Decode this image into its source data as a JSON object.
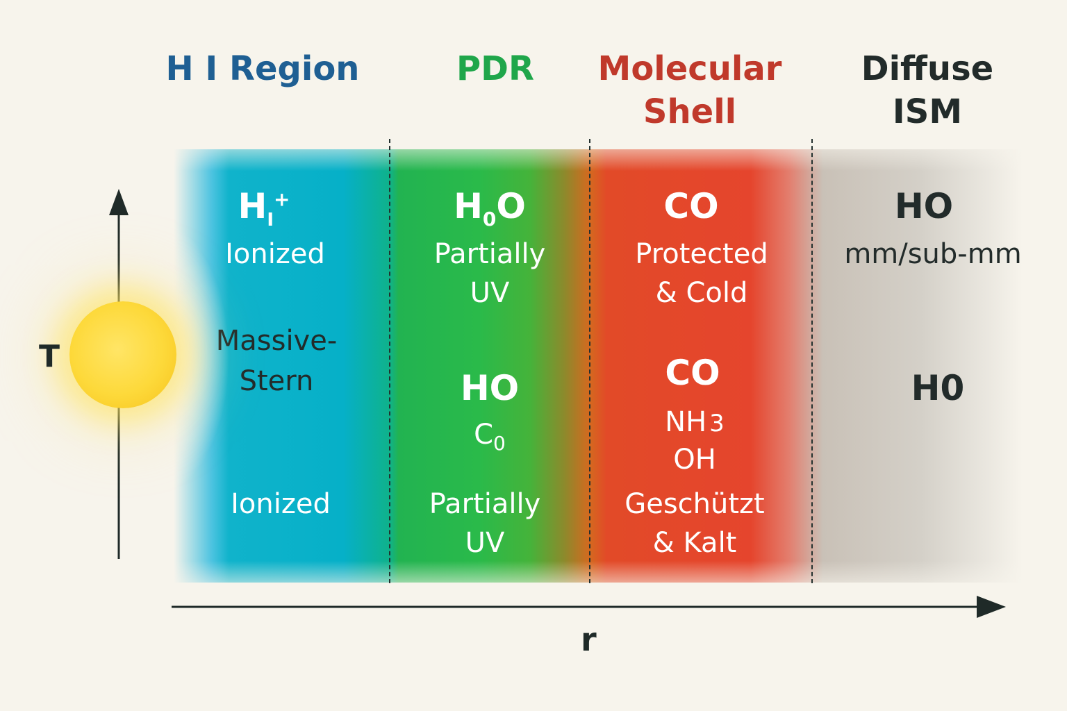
{
  "regions": [
    {
      "title": "H I Region",
      "color": "#1f5f93"
    },
    {
      "title": "PDR",
      "color": "#1fa64a"
    },
    {
      "title": "Molecular Shell",
      "color": "#c0392b"
    },
    {
      "title": "Diffuse ISM",
      "color": "#222b2a"
    }
  ],
  "hi": {
    "species_main": "H",
    "species_sub": "I",
    "species_sup": "+",
    "state_1": "Ionized",
    "star_label": "Massive-\nStern",
    "state_2": "Ionized"
  },
  "pdr": {
    "species_1_main": "H",
    "species_1_sub": "0",
    "species_1_end": "O",
    "state_1": "Partially\nUV",
    "species_2": "HO",
    "species_3_main": "C",
    "species_3_sub": "0",
    "state_2": "Partially\nUV"
  },
  "molecular": {
    "species_1": "CO",
    "state_1": "Protected\n& Cold",
    "species_2": "CO",
    "species_3_main": "NH",
    "species_3_sub": "3",
    "species_4": "OH",
    "state_2": "Geschützt\n& Kalt"
  },
  "diffuse": {
    "species_1": "HO",
    "state_1": "mm/sub-mm",
    "species_2": "H0"
  },
  "axes": {
    "y_label": "T",
    "x_label": "r"
  },
  "colors": {
    "background": "#f7f4ec",
    "axis": "#1f2a28",
    "sun": "#fdd93a"
  }
}
